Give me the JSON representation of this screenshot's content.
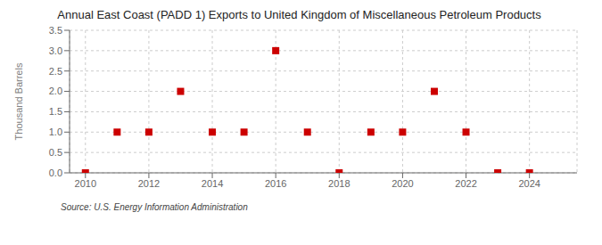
{
  "chart_data": {
    "type": "scatter",
    "title": "Annual East Coast (PADD 1) Exports to United Kingdom of Miscellaneous Petroleum Products",
    "ylabel": "Thousand Barrels",
    "annotations": [
      "Source: U.S. Energy Information Administration"
    ],
    "x": [
      2010,
      2011,
      2012,
      2013,
      2014,
      2015,
      2016,
      2017,
      2018,
      2019,
      2020,
      2021,
      2022,
      2023,
      2024
    ],
    "values": [
      0,
      1,
      1,
      2,
      1,
      1,
      3,
      1,
      0,
      1,
      1,
      2,
      1,
      0,
      0
    ],
    "color": "#cc0000",
    "marker": "square",
    "xlim": [
      2009.5,
      2025.5
    ],
    "xticks": [
      2010,
      2012,
      2014,
      2016,
      2018,
      2020,
      2022,
      2024
    ],
    "ylim": [
      0,
      3.5
    ],
    "yticks": [
      {
        "value": 0,
        "label": "0.0"
      },
      0.5,
      {
        "value": 1,
        "label": "1.0"
      },
      1.5,
      {
        "value": 2,
        "label": "2.0"
      },
      2.5,
      {
        "value": 3,
        "label": "3.0"
      },
      3.5
    ],
    "grid": true
  }
}
